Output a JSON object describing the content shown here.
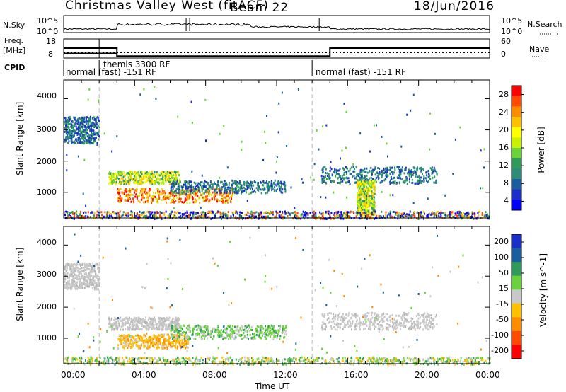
{
  "header": {
    "station": "Christmas Valley West (fitACF)",
    "beam": "Beam 22",
    "date": "18/Jun/2016"
  },
  "sky_panel": {
    "left_label": "N.Sky",
    "right_label": "N.Search",
    "left_ticks": [
      "10^5",
      "10^0"
    ],
    "right_ticks": [
      "10^5",
      "10^0"
    ]
  },
  "freq_panel": {
    "left_label": "Freq.",
    "left_unit": "[MHz]",
    "right_label": "Nave",
    "left_ticks": [
      "18",
      "8"
    ],
    "right_ticks": [
      "60",
      "0"
    ]
  },
  "cpid": {
    "label": "CPID",
    "segments": [
      {
        "text": "normal (fast) -151 RF",
        "start_hour": 0
      },
      {
        "text": "themis 3300 RF",
        "start_hour": 2.0
      },
      {
        "text": "normal (fast) -151 RF",
        "start_hour": 14.0
      }
    ]
  },
  "chart_data": [
    {
      "type": "heatmap",
      "name": "power",
      "xlabel": "",
      "ylabel": "Slant Range [km]",
      "xlim": [
        0,
        24
      ],
      "ylim": [
        180,
        4600
      ],
      "yticks": [
        "1000",
        "2000",
        "3000",
        "4000"
      ],
      "colorbar": {
        "label": "Power [dB]",
        "ticks": [
          "28",
          "24",
          "20",
          "16",
          "12",
          "8",
          "4"
        ],
        "colors": [
          "#ff0000",
          "#ff4a00",
          "#ff8c00",
          "#ffc000",
          "#ffff00",
          "#c8f000",
          "#6ad23a",
          "#2f9a5a",
          "#2e8b7a",
          "#1a5ea0",
          "#1a2ec8",
          "#0000ff"
        ]
      },
      "echo_regions": [
        {
          "t0": 0.0,
          "t1": 2.0,
          "r0": 2600,
          "r1": 3450,
          "level": "low"
        },
        {
          "t0": 2.5,
          "t1": 6.5,
          "r0": 1300,
          "r1": 1700,
          "level": "mid"
        },
        {
          "t0": 3.0,
          "t1": 9.5,
          "r0": 700,
          "r1": 1150,
          "level": "high"
        },
        {
          "t0": 6.0,
          "t1": 12.5,
          "r0": 1000,
          "r1": 1400,
          "level": "low"
        },
        {
          "t0": 14.5,
          "t1": 21.0,
          "r0": 1300,
          "r1": 1850,
          "level": "low"
        },
        {
          "t0": 16.5,
          "t1": 17.5,
          "r0": 300,
          "r1": 1400,
          "level": "mid"
        },
        {
          "t0": 0.0,
          "t1": 24.0,
          "r0": 180,
          "r1": 420,
          "level": "ground"
        }
      ]
    },
    {
      "type": "heatmap",
      "name": "velocity",
      "xlabel": "Time UT",
      "ylabel": "Slant Range [km]",
      "xlim": [
        0,
        24
      ],
      "ylim": [
        180,
        4600
      ],
      "xticks": [
        "00:00",
        "04:00",
        "08:00",
        "12:00",
        "16:00",
        "20:00",
        "00:00"
      ],
      "yticks": [
        "1000",
        "2000",
        "3000",
        "4000"
      ],
      "colorbar": {
        "label": "Velocity [m s^-1]",
        "ticks": [
          "200",
          "100",
          "50",
          "15",
          "-15",
          "-50",
          "-100",
          "-200"
        ],
        "colors": [
          "#1a2ec8",
          "#1a5ea0",
          "#2f9a5a",
          "#6ad23a",
          "#c8c8c8",
          "#ffc000",
          "#ff8c00",
          "#ff4a00",
          "#ff0000"
        ]
      },
      "echo_regions": [
        {
          "t0": 0.0,
          "t1": 2.0,
          "r0": 2600,
          "r1": 3450,
          "level": "grey"
        },
        {
          "t0": 2.5,
          "t1": 6.5,
          "r0": 1300,
          "r1": 1700,
          "level": "grey"
        },
        {
          "t0": 3.0,
          "t1": 7.0,
          "r0": 700,
          "r1": 1150,
          "level": "orange"
        },
        {
          "t0": 6.0,
          "t1": 12.5,
          "r0": 1000,
          "r1": 1450,
          "level": "green"
        },
        {
          "t0": 14.5,
          "t1": 21.0,
          "r0": 1300,
          "r1": 1850,
          "level": "grey"
        },
        {
          "t0": 0.0,
          "t1": 24.0,
          "r0": 180,
          "r1": 420,
          "level": "ground"
        }
      ]
    }
  ]
}
